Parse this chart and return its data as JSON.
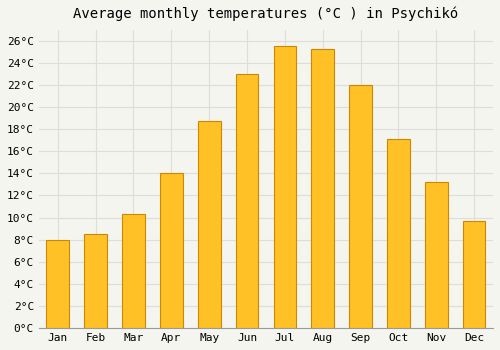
{
  "title": "Average monthly temperatures (°C ) in Psychikó",
  "months": [
    "Jan",
    "Feb",
    "Mar",
    "Apr",
    "May",
    "Jun",
    "Jul",
    "Aug",
    "Sep",
    "Oct",
    "Nov",
    "Dec"
  ],
  "values": [
    8.0,
    8.5,
    10.3,
    14.0,
    18.7,
    23.0,
    25.5,
    25.2,
    22.0,
    17.1,
    13.2,
    9.7
  ],
  "bar_color_top": "#FFC125",
  "bar_color_bottom": "#FFB300",
  "bar_edge_color": "#CC8800",
  "ylim": [
    0,
    27
  ],
  "yticks": [
    0,
    2,
    4,
    6,
    8,
    10,
    12,
    14,
    16,
    18,
    20,
    22,
    24,
    26
  ],
  "background_color": "#f5f5f0",
  "plot_bg_color": "#f5f5f0",
  "grid_color": "#dddddd",
  "title_fontsize": 10,
  "tick_fontsize": 8,
  "font_family": "monospace",
  "bar_width": 0.6
}
